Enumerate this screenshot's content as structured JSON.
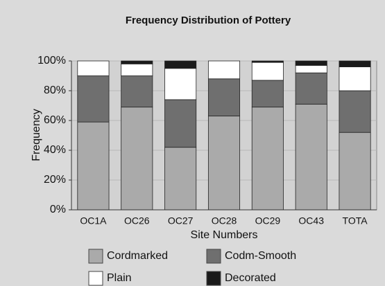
{
  "chart_data": {
    "type": "stacked_bar",
    "title": "Frequency Distribution of Pottery",
    "x_label": "Site Numbers",
    "y_label": "Frequency",
    "categories": [
      "OC1A",
      "OC26",
      "OC27",
      "OC28",
      "OC29",
      "OC43",
      "TOTA"
    ],
    "series": [
      {
        "name": "Cordmarked",
        "color": "#aaaaaa",
        "values": [
          59,
          69,
          42,
          63,
          69,
          71,
          52
        ]
      },
      {
        "name": "Codm-Smooth",
        "color": "#6f6f6f",
        "values": [
          31,
          21,
          32,
          25,
          18,
          21,
          28
        ]
      },
      {
        "name": "Plain",
        "color": "#ffffff",
        "values": [
          10,
          8,
          21,
          12,
          12,
          5,
          16
        ]
      },
      {
        "name": "Decorated",
        "color": "#1a1a1a",
        "values": [
          0,
          2,
          5,
          0,
          1,
          3,
          4
        ]
      }
    ],
    "ylim": [
      0,
      100
    ],
    "yticks": [
      {
        "value": 0,
        "label": "0%"
      },
      {
        "value": 20,
        "label": "20%"
      },
      {
        "value": 40,
        "label": "40%"
      },
      {
        "value": 60,
        "label": "60%"
      },
      {
        "value": 80,
        "label": "80%"
      },
      {
        "value": 100,
        "label": "100%"
      }
    ],
    "grid": true
  }
}
